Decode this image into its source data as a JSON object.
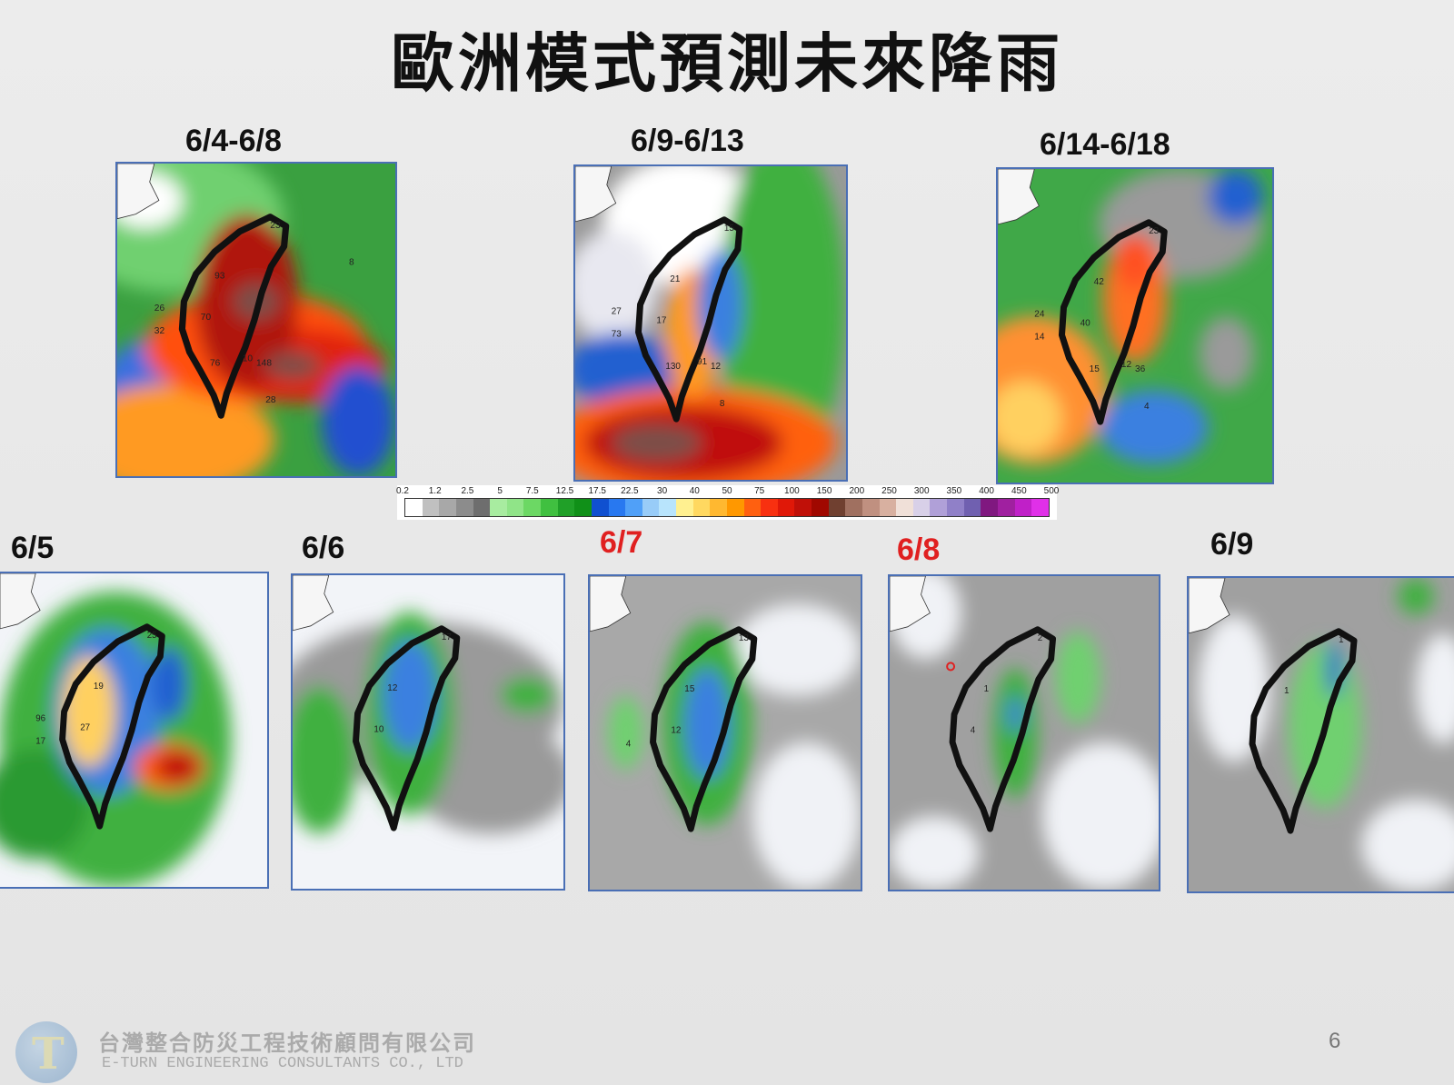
{
  "title": "歐洲模式預測未來降雨",
  "panels": [
    {
      "label": "6/4-6/8",
      "label_color": "#111111",
      "numbers": [
        "23",
        "93",
        "70",
        "32",
        "26",
        "148",
        "10",
        "76",
        "28",
        "8"
      ]
    },
    {
      "label": "6/9-6/13",
      "label_color": "#111111",
      "numbers": [
        "15",
        "21",
        "17",
        "73",
        "27",
        "12",
        "91",
        "130",
        "8"
      ]
    },
    {
      "label": "6/14-6/18",
      "label_color": "#111111",
      "numbers": [
        "23",
        "42",
        "40",
        "14",
        "24",
        "36",
        "12",
        "15",
        "4"
      ]
    },
    {
      "label": "6/5",
      "label_color": "#111111",
      "numbers": [
        "25",
        "19",
        "27",
        "17",
        "96"
      ]
    },
    {
      "label": "6/6",
      "label_color": "#111111",
      "numbers": [
        "17",
        "12",
        "10"
      ]
    },
    {
      "label": "6/7",
      "label_color": "#e02020",
      "numbers": [
        "13",
        "15",
        "12",
        "4"
      ]
    },
    {
      "label": "6/8",
      "label_color": "#e02020",
      "numbers": [
        "2",
        "1",
        "4"
      ]
    },
    {
      "label": "6/9",
      "label_color": "#111111",
      "numbers": [
        "1",
        "1"
      ]
    }
  ],
  "colorbar": {
    "ticks": [
      "0.2",
      "1.2",
      "2.5",
      "5",
      "7.5",
      "12.5",
      "17.5",
      "22.5",
      "30",
      "40",
      "50",
      "75",
      "100",
      "150",
      "200",
      "250",
      "300",
      "350",
      "400",
      "450",
      "500"
    ],
    "colors": [
      "#ffffff",
      "#c0c0c0",
      "#a8a8a8",
      "#8c8c8c",
      "#6e6e6e",
      "#a8eca0",
      "#90e488",
      "#6cd864",
      "#40c040",
      "#20a028",
      "#109018",
      "#1050d0",
      "#2878f0",
      "#50a0f8",
      "#98ccf8",
      "#b8e4fc",
      "#fff090",
      "#ffd860",
      "#ffb830",
      "#ff9800",
      "#ff6010",
      "#f83010",
      "#e01808",
      "#c01008",
      "#a00800",
      "#704030",
      "#a07060",
      "#c09080",
      "#d8b0a0",
      "#f0e0d8",
      "#d8d0e8",
      "#b0a0d8",
      "#9080c8",
      "#7060b0",
      "#801880",
      "#a020a0",
      "#c020c8",
      "#e030e8"
    ]
  },
  "footer": {
    "company_cn": "台灣整合防災工程技術顧問有限公司",
    "company_en": "E-TURN ENGINEERING CONSULTANTS CO., LTD"
  },
  "page_number": "6"
}
